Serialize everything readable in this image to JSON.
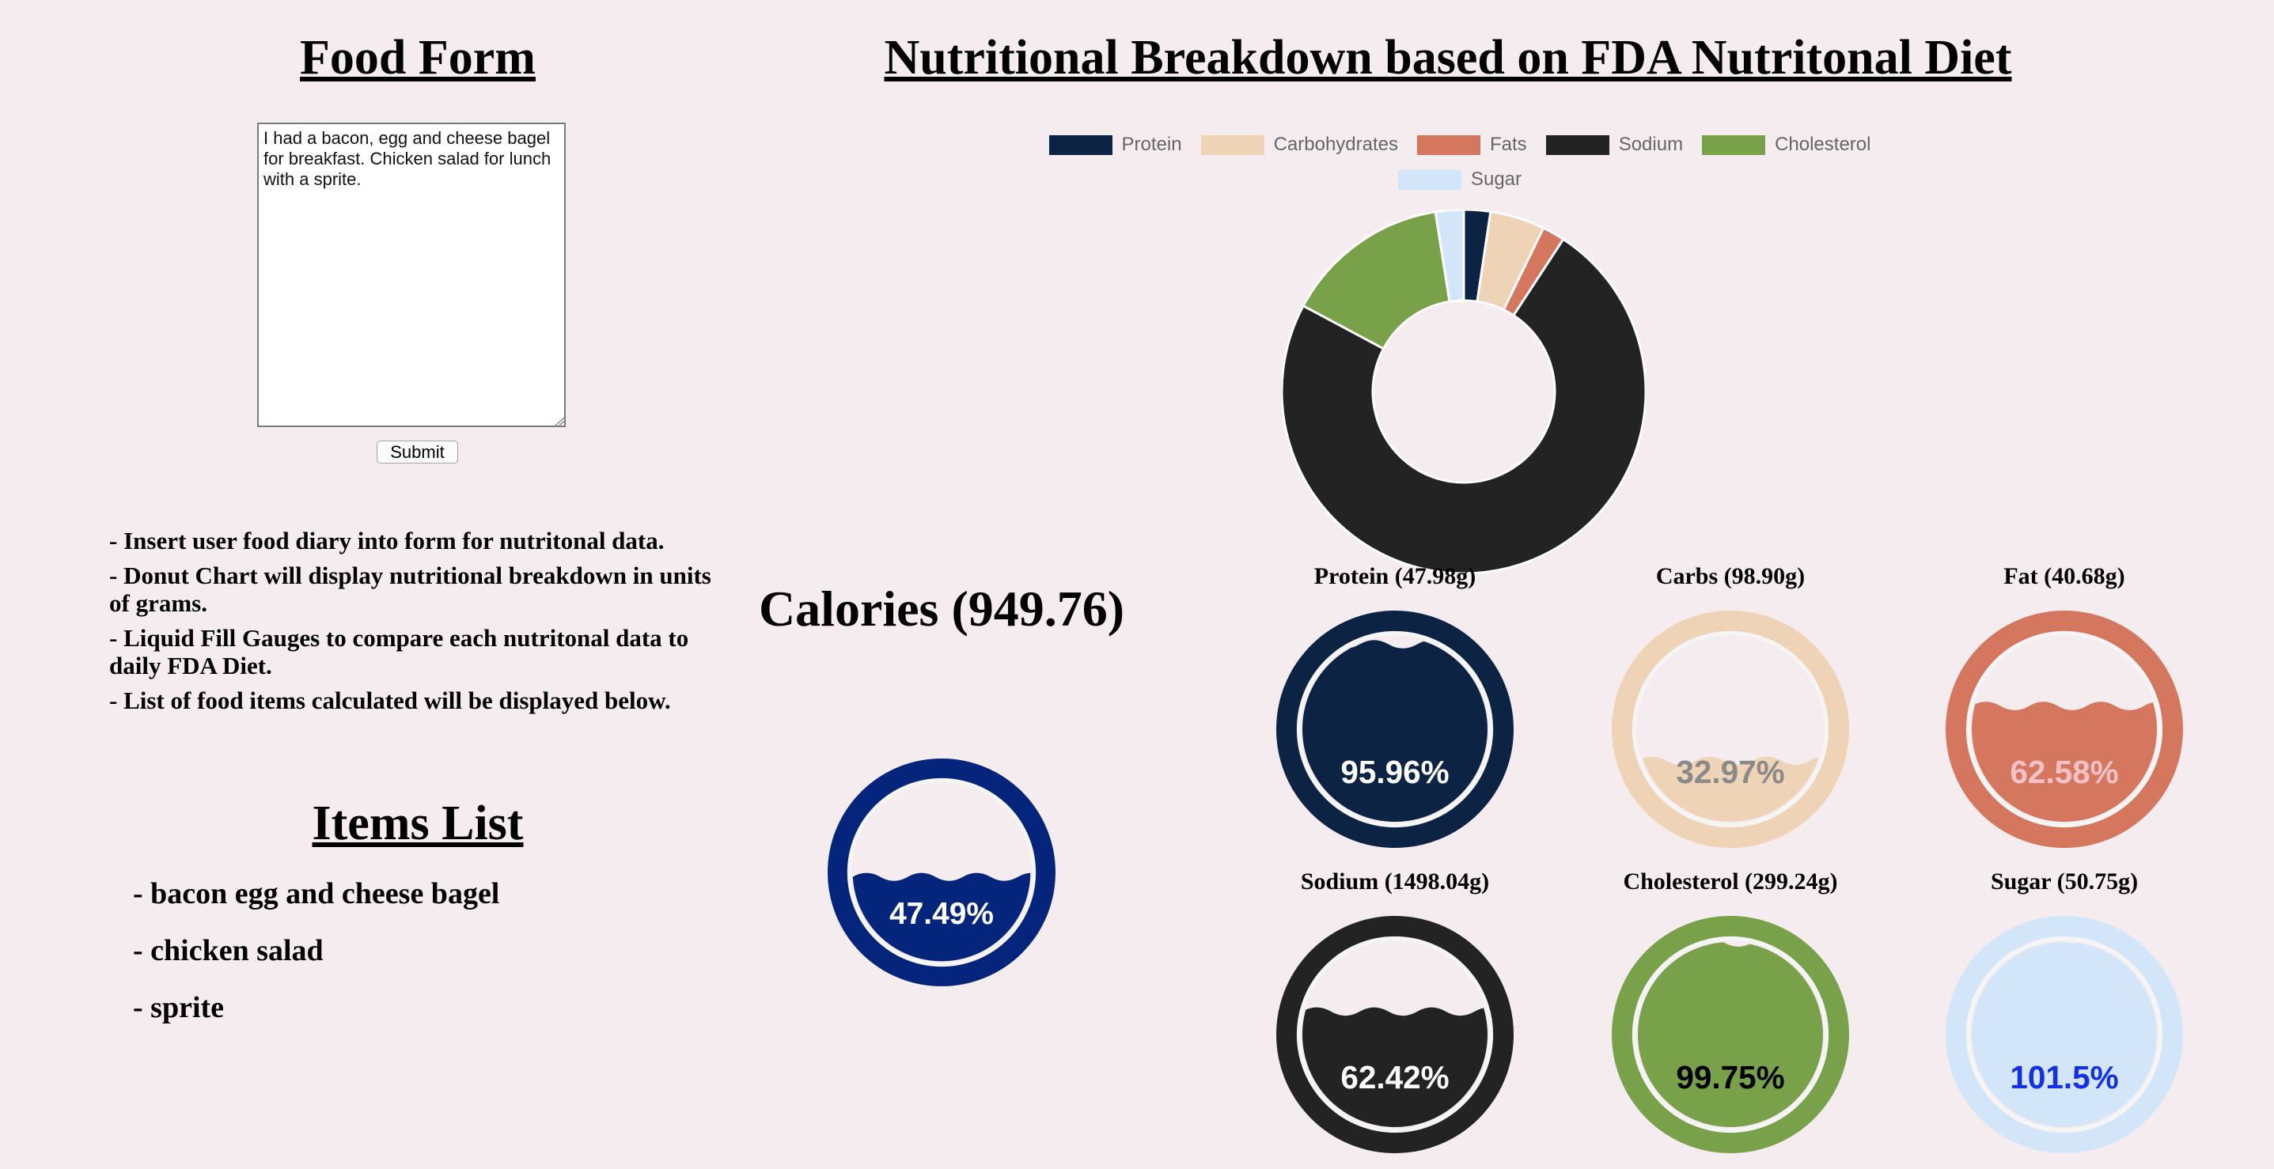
{
  "left_panel": {
    "title": "Food Form",
    "diary_text": "I had a bacon, egg and cheese bagel for breakfast. Chicken salad for lunch with a sprite.",
    "submit_label": "Submit",
    "instructions": [
      "- Insert user food diary into form for nutritonal data.",
      "- Donut Chart will display nutritional breakdown in units of grams.",
      "- Liquid Fill Gauges to compare each nutritonal data to daily FDA Diet.",
      "- List of food items calculated will be displayed below."
    ],
    "items_title": "Items List",
    "items": [
      "- bacon egg and cheese bagel",
      "- chicken salad",
      "- sprite"
    ]
  },
  "main": {
    "title": "Nutritional Breakdown based on FDA Nutritonal Diet"
  },
  "chart_data": {
    "type": "pie",
    "donut": true,
    "legend_position": "top",
    "categories": [
      "Protein",
      "Carbohydrates",
      "Fats",
      "Sodium",
      "Cholesterol",
      "Sugar"
    ],
    "values": [
      47.98,
      98.9,
      40.68,
      1498.04,
      299.24,
      50.75
    ],
    "colors": [
      "#0d2344",
      "#efd3b6",
      "#d5775e",
      "#232323",
      "#79a14a",
      "#d3e5f8"
    ]
  },
  "calories": {
    "label": "Calories (949.76)",
    "percent_text": "47.49%",
    "fill": 0.4749,
    "ring_color": "#05247c",
    "fill_color": "#05247c",
    "text_color": "#ffffff"
  },
  "gauges": [
    {
      "label": "Protein (47.98g)",
      "percent_text": "95.96%",
      "fill": 0.9596,
      "ring_color": "#0d2344",
      "fill_color": "#0d2344",
      "text_color": "#ffffff"
    },
    {
      "label": "Carbs (98.90g)",
      "percent_text": "32.97%",
      "fill": 0.3297,
      "ring_color": "#efd3b6",
      "fill_color": "#efd3b6",
      "text_color": "#8a8a8a"
    },
    {
      "label": "Fat (40.68g)",
      "percent_text": "62.58%",
      "fill": 0.6258,
      "ring_color": "#d5775e",
      "fill_color": "#d5775e",
      "text_color": "#f4c1c7"
    },
    {
      "label": "Sodium (1498.04g)",
      "percent_text": "62.42%",
      "fill": 0.6242,
      "ring_color": "#232323",
      "fill_color": "#232323",
      "text_color": "#ffffff"
    },
    {
      "label": "Cholesterol (299.24g)",
      "percent_text": "99.75%",
      "fill": 0.9975,
      "ring_color": "#79a14a",
      "fill_color": "#79a14a",
      "text_color": "#000000"
    },
    {
      "label": "Sugar (50.75g)",
      "percent_text": "101.5%",
      "fill": 1.015,
      "ring_color": "#d3e5f8",
      "fill_color": "#d3e5f8",
      "text_color": "#1330e8"
    }
  ]
}
